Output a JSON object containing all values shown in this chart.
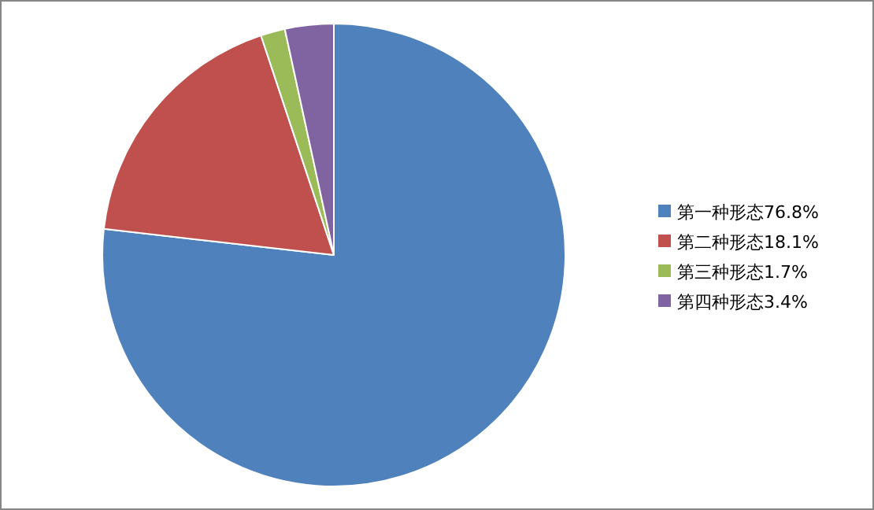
{
  "chart_data": {
    "type": "pie",
    "categories": [
      "第一种形态76.8%",
      "第二种形态18.1%",
      "第三种形态1.7%",
      "第四种形态3.4%"
    ],
    "values": [
      76.8,
      18.1,
      1.7,
      3.4
    ],
    "colors": [
      "#4f81bd",
      "#c0504d",
      "#9bbb59",
      "#8064a2"
    ],
    "legend": "right"
  }
}
